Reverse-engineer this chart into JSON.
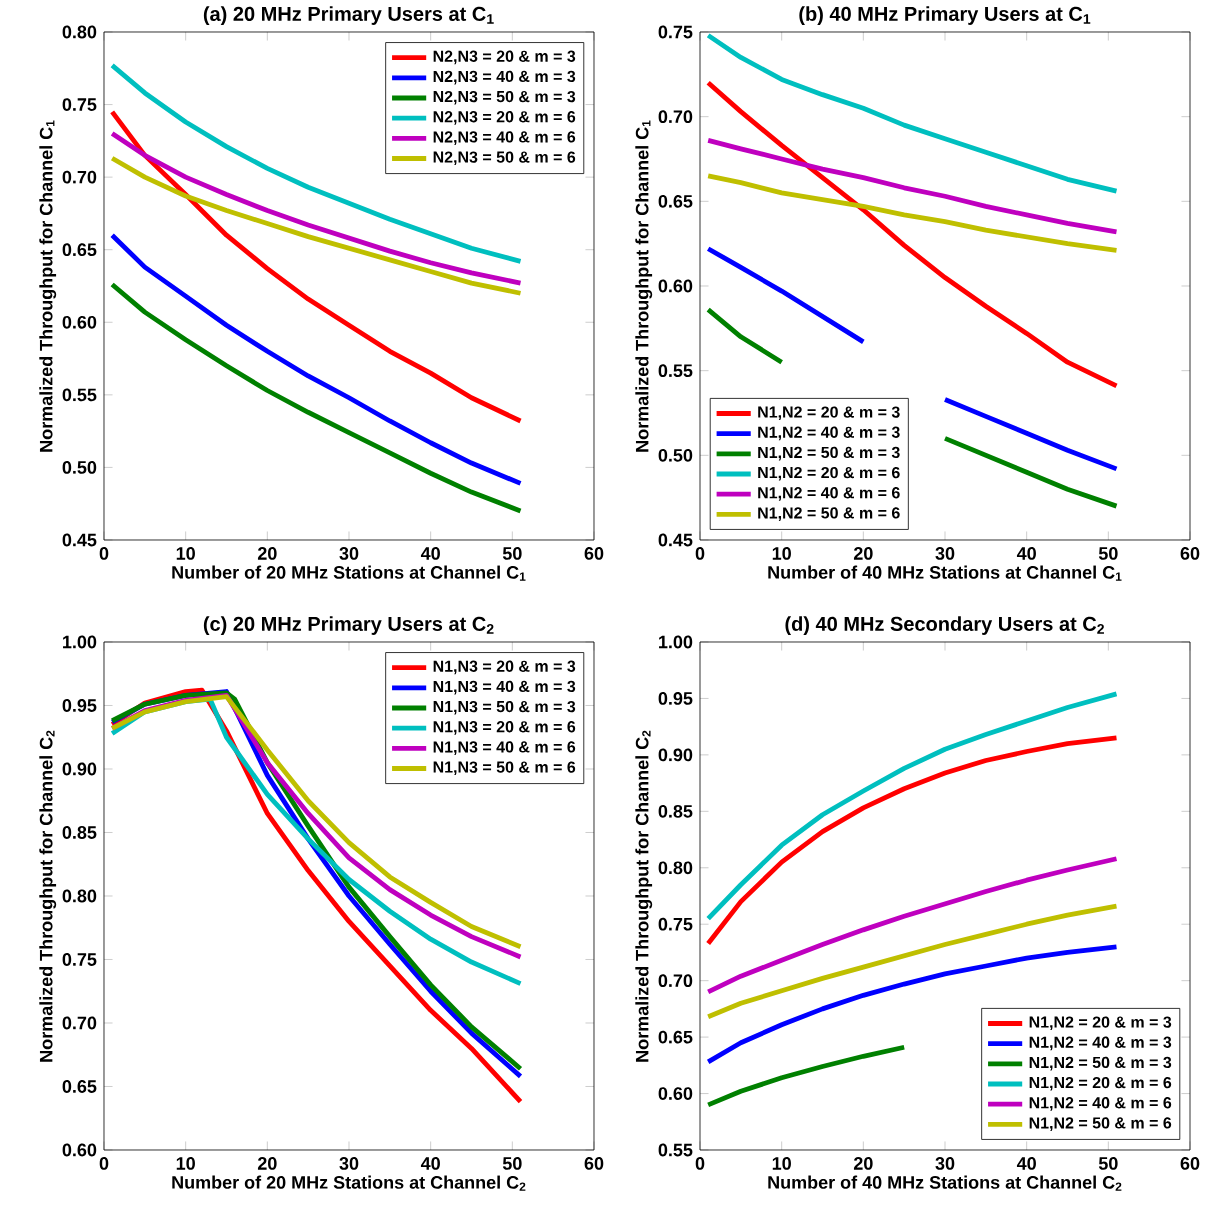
{
  "chart_data": [
    {
      "type": "line",
      "title": "(a) 20 MHz Primary Users at C$_{1}$",
      "xlabel": "Number of 20 MHz Stations at Channel C$_{1}$",
      "ylabel": "Normalized Throughput for Channel C$_{1}$",
      "xlim": [
        0,
        60
      ],
      "ylim": [
        0.45,
        0.8
      ],
      "xticks": [
        0,
        10,
        20,
        30,
        40,
        50,
        60
      ],
      "yticks": [
        {
          "value": 0.45,
          "label": "0.45"
        },
        {
          "value": 0.5,
          "label": "0.50"
        },
        {
          "value": 0.55,
          "label": "0.55"
        },
        {
          "value": 0.6,
          "label": "0.60"
        },
        {
          "value": 0.65,
          "label": "0.65"
        },
        {
          "value": 0.7,
          "label": "0.70"
        },
        {
          "value": 0.75,
          "label": "0.75"
        },
        {
          "value": 0.8,
          "label": "0.80"
        }
      ],
      "legend": "top right",
      "line_style": "solid",
      "x": [
        1,
        5,
        10,
        15,
        20,
        25,
        30,
        35,
        40,
        45,
        51
      ],
      "series": [
        {
          "name": "N2,N3 = 20 & m = 3",
          "color": "#ff0000",
          "values": [
            0.745,
            0.715,
            0.688,
            0.66,
            0.637,
            0.616,
            0.598,
            0.58,
            0.565,
            0.548,
            0.532
          ]
        },
        {
          "name": "N2,N3 = 40 & m = 3",
          "color": "#0000ff",
          "values": [
            0.66,
            0.638,
            0.618,
            0.598,
            0.58,
            0.563,
            0.548,
            0.532,
            0.517,
            0.503,
            0.489
          ]
        },
        {
          "name": "N2,N3 = 50 & m = 3",
          "color": "#008000",
          "values": [
            0.626,
            0.607,
            0.588,
            0.57,
            0.553,
            0.538,
            0.524,
            0.51,
            0.496,
            0.483,
            0.47
          ]
        },
        {
          "name": "N2,N3 = 20 & m = 6",
          "color": "#00bfbf",
          "values": [
            0.777,
            0.758,
            0.738,
            0.721,
            0.706,
            0.693,
            0.682,
            0.671,
            0.661,
            0.651,
            0.642
          ]
        },
        {
          "name": "N2,N3 = 40 & m = 6",
          "color": "#bf00bf",
          "values": [
            0.73,
            0.715,
            0.7,
            0.688,
            0.677,
            0.667,
            0.658,
            0.649,
            0.641,
            0.634,
            0.627
          ]
        },
        {
          "name": "N2,N3 = 50 & m = 6",
          "color": "#bfbf00",
          "values": [
            0.713,
            0.7,
            0.687,
            0.677,
            0.668,
            0.659,
            0.651,
            0.643,
            0.635,
            0.627,
            0.62
          ]
        }
      ]
    },
    {
      "type": "line",
      "title": "(b) 40 MHz Primary Users at C$_{1}$",
      "xlabel": "Number of 40 MHz Stations at Channel C$_{1}$",
      "ylabel": "Normalized Throughput for Channel C$_{1}$",
      "xlim": [
        0,
        60
      ],
      "ylim": [
        0.45,
        0.75
      ],
      "xticks": [
        0,
        10,
        20,
        30,
        40,
        50,
        60
      ],
      "yticks": [
        {
          "value": 0.45,
          "label": "0.45"
        },
        {
          "value": 0.5,
          "label": "0.50"
        },
        {
          "value": 0.55,
          "label": "0.55"
        },
        {
          "value": 0.6,
          "label": "0.60"
        },
        {
          "value": 0.65,
          "label": "0.65"
        },
        {
          "value": 0.7,
          "label": "0.70"
        },
        {
          "value": 0.75,
          "label": "0.75"
        }
      ],
      "legend": "bottom left",
      "line_style": "solid",
      "x": [
        1,
        5,
        10,
        15,
        20,
        25,
        30,
        35,
        40,
        45,
        51
      ],
      "series": [
        {
          "name": "N1,N2 = 20 & m = 3",
          "color": "#ff0000",
          "values": [
            0.72,
            0.703,
            0.683,
            0.664,
            0.645,
            0.624,
            0.605,
            0.588,
            0.572,
            0.555,
            0.541
          ]
        },
        {
          "name": "N1,N2 = 40 & m = 3",
          "color": "#0000ff",
          "values": [
            0.622,
            0.611,
            0.597,
            0.582,
            0.567,
            null,
            0.533,
            0.523,
            0.513,
            0.503,
            0.492
          ]
        },
        {
          "name": "N1,N2 = 50 & m = 3",
          "color": "#008000",
          "values": [
            0.586,
            0.57,
            0.555,
            null,
            null,
            null,
            0.51,
            0.5,
            0.49,
            0.48,
            0.47
          ]
        },
        {
          "name": "N1,N2 = 20 & m = 6",
          "color": "#00bfbf",
          "values": [
            0.748,
            0.735,
            0.722,
            0.713,
            0.705,
            0.695,
            0.687,
            0.679,
            0.671,
            0.663,
            0.656
          ]
        },
        {
          "name": "N1,N2 = 40 & m = 6",
          "color": "#bf00bf",
          "values": [
            0.686,
            0.681,
            0.675,
            0.669,
            0.664,
            0.658,
            0.653,
            0.647,
            0.642,
            0.637,
            0.632
          ]
        },
        {
          "name": "N1,N2 = 50 & m = 6",
          "color": "#bfbf00",
          "values": [
            0.665,
            0.661,
            0.655,
            0.651,
            0.647,
            0.642,
            0.638,
            0.633,
            0.629,
            0.625,
            0.621
          ]
        }
      ]
    },
    {
      "type": "line",
      "title": "(c) 20 MHz Primary Users at C$_{2}$",
      "xlabel": "Number of 20 MHz Stations at Channel C$_{2}$",
      "ylabel": "Normalized Throughput for Channel C$_{2}$",
      "xlim": [
        0,
        60
      ],
      "ylim": [
        0.6,
        1.0
      ],
      "xticks": [
        0,
        10,
        20,
        30,
        40,
        50,
        60
      ],
      "yticks": [
        {
          "value": 0.6,
          "label": "0.60"
        },
        {
          "value": 0.65,
          "label": "0.65"
        },
        {
          "value": 0.7,
          "label": "0.70"
        },
        {
          "value": 0.75,
          "label": "0.75"
        },
        {
          "value": 0.8,
          "label": "0.80"
        },
        {
          "value": 0.85,
          "label": "0.85"
        },
        {
          "value": 0.9,
          "label": "0.90"
        },
        {
          "value": 0.95,
          "label": "0.95"
        },
        {
          "value": 1.0,
          "label": "1.00"
        }
      ],
      "legend": "top right",
      "line_style": "solid",
      "series": [
        {
          "name": "N1,N3 = 20 & m = 3",
          "color": "#ff0000",
          "x": [
            1,
            5,
            10,
            12,
            15,
            20,
            25,
            30,
            35,
            40,
            45,
            51
          ],
          "values": [
            0.935,
            0.952,
            0.961,
            0.962,
            0.93,
            0.865,
            0.82,
            0.78,
            0.745,
            0.71,
            0.68,
            0.638
          ]
        },
        {
          "name": "N1,N3 = 40 & m = 3",
          "color": "#0000ff",
          "x": [
            1,
            5,
            10,
            15,
            20,
            25,
            30,
            35,
            40,
            45,
            51
          ],
          "values": [
            0.937,
            0.951,
            0.958,
            0.961,
            0.895,
            0.845,
            0.8,
            0.762,
            0.725,
            0.692,
            0.658
          ]
        },
        {
          "name": "N1,N3 = 50 & m = 3",
          "color": "#008000",
          "x": [
            1,
            5,
            10,
            15,
            16,
            20,
            25,
            30,
            35,
            40,
            45,
            51
          ],
          "values": [
            0.938,
            0.951,
            0.958,
            0.96,
            0.955,
            0.905,
            0.855,
            0.807,
            0.768,
            0.73,
            0.697,
            0.664
          ]
        },
        {
          "name": "N1,N3 = 20 & m = 6",
          "color": "#00bfbf",
          "x": [
            1,
            5,
            10,
            13,
            15,
            20,
            25,
            30,
            35,
            40,
            45,
            51
          ],
          "values": [
            0.928,
            0.945,
            0.953,
            0.955,
            0.925,
            0.88,
            0.845,
            0.813,
            0.788,
            0.766,
            0.748,
            0.731
          ]
        },
        {
          "name": "N1,N3 = 40 & m = 6",
          "color": "#bf00bf",
          "x": [
            1,
            5,
            10,
            15,
            20,
            25,
            30,
            35,
            40,
            45,
            51
          ],
          "values": [
            0.932,
            0.946,
            0.954,
            0.958,
            0.905,
            0.865,
            0.83,
            0.805,
            0.785,
            0.768,
            0.752
          ]
        },
        {
          "name": "N1,N3 = 50 & m = 6",
          "color": "#bfbf00",
          "x": [
            1,
            5,
            10,
            15,
            20,
            25,
            30,
            35,
            40,
            45,
            51
          ],
          "values": [
            0.932,
            0.945,
            0.953,
            0.957,
            0.915,
            0.875,
            0.842,
            0.815,
            0.795,
            0.776,
            0.76
          ]
        }
      ]
    },
    {
      "type": "line",
      "title": "(d) 40 MHz Secondary Users at C$_{2}$",
      "xlabel": "Number of 40 MHz Stations at Channel C$_{2}$",
      "ylabel": "Normalized Throughput for Channel C$_{2}$",
      "xlim": [
        0,
        60
      ],
      "ylim": [
        0.55,
        1.0
      ],
      "xticks": [
        0,
        10,
        20,
        30,
        40,
        50,
        60
      ],
      "yticks": [
        {
          "value": 0.55,
          "label": "0.55"
        },
        {
          "value": 0.6,
          "label": "0.60"
        },
        {
          "value": 0.65,
          "label": "0.65"
        },
        {
          "value": 0.7,
          "label": "0.70"
        },
        {
          "value": 0.75,
          "label": "0.75"
        },
        {
          "value": 0.8,
          "label": "0.80"
        },
        {
          "value": 0.85,
          "label": "0.85"
        },
        {
          "value": 0.9,
          "label": "0.90"
        },
        {
          "value": 0.95,
          "label": "0.95"
        },
        {
          "value": 1.0,
          "label": "1.00"
        }
      ],
      "legend": "bottom right",
      "line_style": "solid",
      "x": [
        1,
        5,
        10,
        15,
        20,
        25,
        30,
        35,
        40,
        45,
        51
      ],
      "series": [
        {
          "name": "N1,N2 = 20 & m = 3",
          "color": "#ff0000",
          "values": [
            0.733,
            0.77,
            0.805,
            0.832,
            0.853,
            0.87,
            0.884,
            0.895,
            0.903,
            0.91,
            0.915
          ]
        },
        {
          "name": "N1,N2 = 40 & m = 3",
          "color": "#0000ff",
          "values": [
            0.628,
            0.645,
            0.661,
            0.675,
            0.687,
            0.697,
            0.706,
            0.713,
            0.72,
            0.725,
            0.73
          ]
        },
        {
          "name": "N1,N2 = 50 & m = 3",
          "color": "#008000",
          "values": [
            0.59,
            0.602,
            0.614,
            0.624,
            0.633,
            0.641,
            null,
            null,
            null,
            null,
            null
          ]
        },
        {
          "name": "N1,N2 = 20 & m = 6",
          "color": "#00bfbf",
          "values": [
            0.755,
            0.785,
            0.82,
            0.847,
            0.868,
            0.888,
            0.905,
            0.918,
            0.93,
            0.942,
            0.954
          ]
        },
        {
          "name": "N1,N2 = 40 & m = 6",
          "color": "#bf00bf",
          "values": [
            0.69,
            0.704,
            0.718,
            0.732,
            0.745,
            0.757,
            0.768,
            0.779,
            0.789,
            0.798,
            0.808
          ]
        },
        {
          "name": "N1,N2 = 50 & m = 6",
          "color": "#bfbf00",
          "values": [
            0.668,
            0.68,
            0.691,
            0.702,
            0.712,
            0.722,
            0.732,
            0.741,
            0.75,
            0.758,
            0.766
          ]
        }
      ]
    }
  ]
}
